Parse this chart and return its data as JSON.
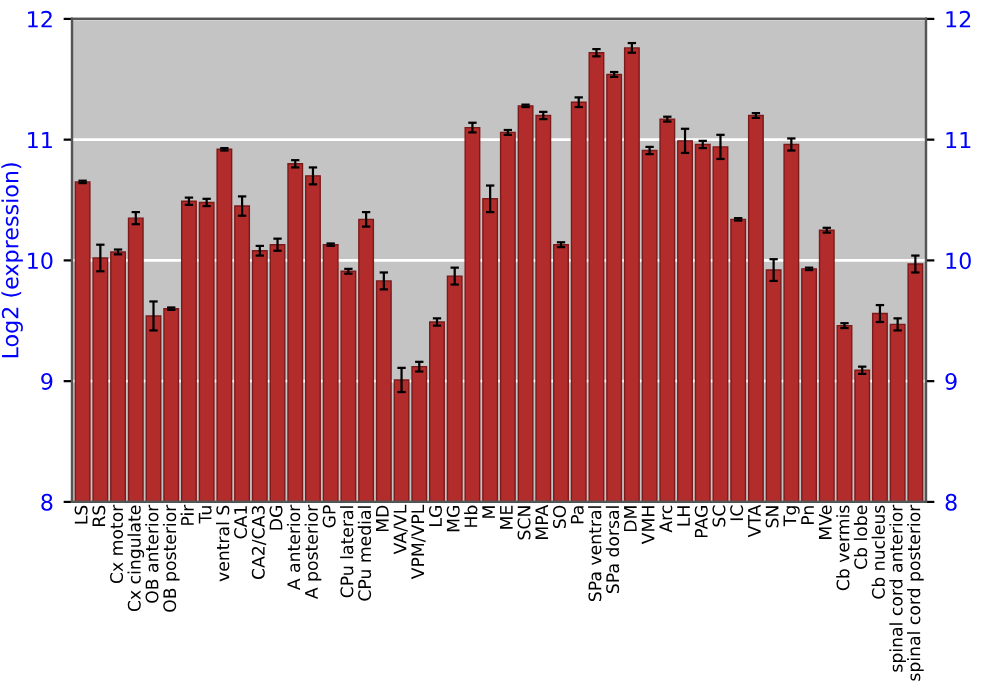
{
  "chart_data": {
    "type": "bar",
    "ylabel": "Log2 (expression)",
    "categories": [
      "LS",
      "RS",
      "Cx motor",
      "Cx cingulate",
      "OB anterior",
      "OB posterior",
      "Pir",
      "Tu",
      "ventral S",
      "CA1",
      "CA2/CA3",
      "DG",
      "A anterior",
      "A posterior",
      "GP",
      "CPu lateral",
      "CPu medial",
      "MD",
      "VA/VL",
      "VPM/VPL",
      "LG",
      "MG",
      "Hb",
      "M",
      "ME",
      "SCN",
      "MPA",
      "SO",
      "Pa",
      "SPa ventral",
      "SPa dorsal",
      "DM",
      "VMH",
      "Arc",
      "LH",
      "PAG",
      "SC",
      "IC",
      "VTA",
      "SN",
      "Tg",
      "Pn",
      "MVe",
      "Cb vermis",
      "Cb lobe",
      "Cb nucleus",
      "spinal cord anterior",
      "spinal cord posterior"
    ],
    "values": [
      10.65,
      10.02,
      10.07,
      10.35,
      9.54,
      9.6,
      10.49,
      10.48,
      10.92,
      10.45,
      10.08,
      10.13,
      10.8,
      10.7,
      10.13,
      9.91,
      10.34,
      9.83,
      9.01,
      9.12,
      9.49,
      9.87,
      11.1,
      10.51,
      11.06,
      11.28,
      11.2,
      10.13,
      11.31,
      11.72,
      11.54,
      11.76,
      10.91,
      11.17,
      10.99,
      10.96,
      10.94,
      10.34,
      11.2,
      9.92,
      10.96,
      9.93,
      10.25,
      9.46,
      9.09,
      9.56,
      9.47,
      9.97
    ],
    "errors": [
      0.01,
      0.11,
      0.02,
      0.05,
      0.12,
      0.01,
      0.03,
      0.03,
      0.01,
      0.08,
      0.04,
      0.05,
      0.03,
      0.07,
      0.01,
      0.02,
      0.06,
      0.07,
      0.1,
      0.04,
      0.03,
      0.07,
      0.04,
      0.11,
      0.02,
      0.01,
      0.03,
      0.02,
      0.04,
      0.03,
      0.02,
      0.04,
      0.03,
      0.02,
      0.1,
      0.03,
      0.1,
      0.01,
      0.02,
      0.09,
      0.05,
      0.01,
      0.02,
      0.02,
      0.03,
      0.07,
      0.05,
      0.07
    ],
    "color": "#b22c2c",
    "ylim": [
      8,
      12
    ],
    "yticks": [
      8,
      9,
      10,
      11,
      12
    ],
    "y2lim": [
      8,
      12
    ],
    "y2ticks": [
      8,
      9,
      10,
      11,
      12
    ],
    "grid": "y"
  }
}
